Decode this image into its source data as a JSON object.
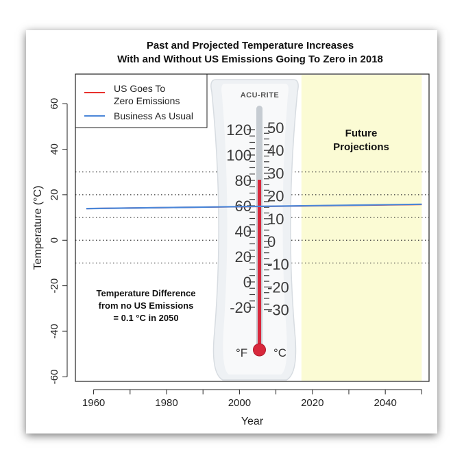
{
  "chart_data": {
    "type": "line",
    "title_line1": "Past and Projected Temperature Increases",
    "title_line2": "With and Without US Emissions Going To Zero in 2018",
    "xlabel": "Year",
    "ylabel": "Temperature (°C)",
    "xlim": [
      1955,
      2052
    ],
    "ylim": [
      -62,
      73
    ],
    "x_ticks": [
      1960,
      1980,
      2000,
      2020,
      2040
    ],
    "x_minor_ticks": [
      1960,
      1970,
      1980,
      1990,
      2000,
      2010,
      2020,
      2030,
      2040,
      2050
    ],
    "y_ticks": [
      -60,
      -40,
      -20,
      0,
      20,
      40,
      60
    ],
    "dotted_gridlines_y": [
      30,
      20,
      10,
      0,
      -10
    ],
    "future_region": {
      "from": 2017,
      "to": 2050,
      "color": "#fbfbd4"
    },
    "series": [
      {
        "name": "US Goes To Zero Emissions",
        "color": "#e8312c",
        "x": [
          1958,
          2050
        ],
        "y": [
          13.9,
          15.7
        ]
      },
      {
        "name": "Business As Usual",
        "color": "#4a86d8",
        "x": [
          1958,
          2050
        ],
        "y": [
          13.9,
          15.8
        ]
      }
    ],
    "legend_line1": "US Goes To",
    "legend_line2": "Zero Emissions",
    "legend_line3": "Business As Usual",
    "legend_position": "top-left",
    "future_label_line1": "Future",
    "future_label_line2": "Projections",
    "annotation_line1": "Temperature Difference",
    "annotation_line2": "from no US Emissions",
    "annotation_line3": "= 0.1 °C in 2050"
  },
  "thermometer": {
    "brand": "ACU-RITE",
    "f_scale": [
      "120",
      "100",
      "80",
      "60",
      "40",
      "20",
      "0",
      "-20"
    ],
    "c_scale": [
      "50",
      "40",
      "30",
      "20",
      "10",
      "0",
      "-10",
      "-20",
      "-30"
    ],
    "f_unit": "°F",
    "c_unit": "°C",
    "colors": {
      "body": "#f1f3f5",
      "tube": "#c6ccd2",
      "mercury": "#d8283c",
      "scale": "#3a3a3a"
    }
  }
}
